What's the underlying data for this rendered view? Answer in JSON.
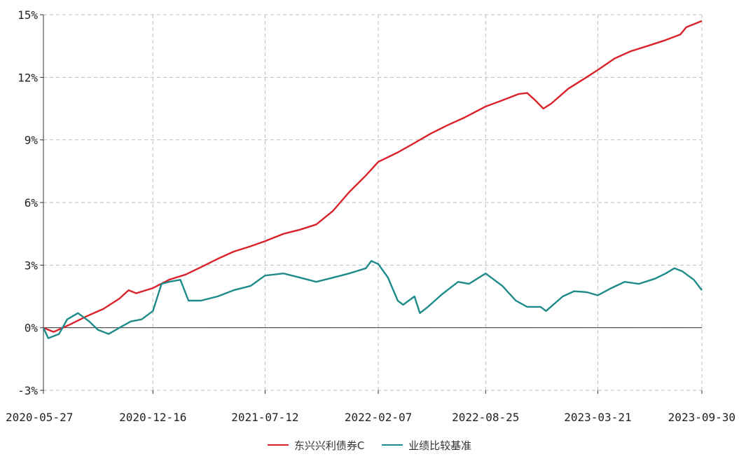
{
  "chart_data": {
    "type": "line",
    "title": "",
    "xlabel": "",
    "ylabel": "",
    "x_ticks": [
      "2020-05-27",
      "2020-12-16",
      "2021-07-12",
      "2022-02-07",
      "2022-08-25",
      "2023-03-21",
      "2023-09-30"
    ],
    "y_ticks": [
      "15%",
      "12%",
      "9%",
      "6%",
      "3%",
      "0%",
      "-3%"
    ],
    "y_tick_values": [
      15,
      12,
      9,
      6,
      3,
      0,
      -3
    ],
    "ylim": [
      -3,
      15
    ],
    "xlim": [
      "2020-05-27",
      "2023-09-30"
    ],
    "grid": true,
    "legend_position": "bottom-center",
    "series": [
      {
        "name": "东兴兴利债券C",
        "color": "#d9222a",
        "points": [
          [
            "2020-05-27",
            0.0
          ],
          [
            "2020-06-15",
            -0.2
          ],
          [
            "2020-07-15",
            0.15
          ],
          [
            "2020-08-15",
            0.55
          ],
          [
            "2020-09-15",
            0.9
          ],
          [
            "2020-10-15",
            1.4
          ],
          [
            "2020-11-01",
            1.8
          ],
          [
            "2020-11-15",
            1.65
          ],
          [
            "2020-12-16",
            1.9
          ],
          [
            "2021-01-15",
            2.3
          ],
          [
            "2021-02-15",
            2.55
          ],
          [
            "2021-03-15",
            2.9
          ],
          [
            "2021-04-15",
            3.3
          ],
          [
            "2021-05-15",
            3.65
          ],
          [
            "2021-06-15",
            3.9
          ],
          [
            "2021-07-12",
            4.15
          ],
          [
            "2021-08-15",
            4.5
          ],
          [
            "2021-09-15",
            4.7
          ],
          [
            "2021-10-15",
            4.95
          ],
          [
            "2021-11-15",
            5.6
          ],
          [
            "2021-12-15",
            6.5
          ],
          [
            "2022-01-15",
            7.3
          ],
          [
            "2022-02-07",
            7.95
          ],
          [
            "2022-03-15",
            8.4
          ],
          [
            "2022-04-15",
            8.85
          ],
          [
            "2022-05-15",
            9.3
          ],
          [
            "2022-06-15",
            9.7
          ],
          [
            "2022-07-15",
            10.05
          ],
          [
            "2022-08-25",
            10.6
          ],
          [
            "2022-09-25",
            10.9
          ],
          [
            "2022-10-25",
            11.2
          ],
          [
            "2022-11-10",
            11.25
          ],
          [
            "2022-11-25",
            10.9
          ],
          [
            "2022-12-10",
            10.5
          ],
          [
            "2022-12-25",
            10.75
          ],
          [
            "2023-01-25",
            11.45
          ],
          [
            "2023-02-25",
            11.95
          ],
          [
            "2023-03-21",
            12.35
          ],
          [
            "2023-04-21",
            12.9
          ],
          [
            "2023-05-21",
            13.25
          ],
          [
            "2023-06-21",
            13.5
          ],
          [
            "2023-07-21",
            13.75
          ],
          [
            "2023-08-21",
            14.05
          ],
          [
            "2023-09-01",
            14.4
          ],
          [
            "2023-09-30",
            14.7
          ]
        ]
      },
      {
        "name": "业绩比较基准",
        "color": "#1e8a8a",
        "points": [
          [
            "2020-05-27",
            0.0
          ],
          [
            "2020-06-05",
            -0.5
          ],
          [
            "2020-06-25",
            -0.3
          ],
          [
            "2020-07-10",
            0.4
          ],
          [
            "2020-07-30",
            0.7
          ],
          [
            "2020-08-20",
            0.3
          ],
          [
            "2020-09-05",
            -0.1
          ],
          [
            "2020-09-25",
            -0.3
          ],
          [
            "2020-10-15",
            0.0
          ],
          [
            "2020-11-05",
            0.3
          ],
          [
            "2020-11-25",
            0.4
          ],
          [
            "2020-12-16",
            0.8
          ],
          [
            "2021-01-01",
            2.1
          ],
          [
            "2021-01-15",
            2.2
          ],
          [
            "2021-02-05",
            2.3
          ],
          [
            "2021-02-20",
            1.3
          ],
          [
            "2021-03-15",
            1.3
          ],
          [
            "2021-04-15",
            1.5
          ],
          [
            "2021-05-15",
            1.8
          ],
          [
            "2021-06-15",
            2.0
          ],
          [
            "2021-07-12",
            2.5
          ],
          [
            "2021-08-15",
            2.6
          ],
          [
            "2021-09-15",
            2.4
          ],
          [
            "2021-10-15",
            2.2
          ],
          [
            "2021-11-15",
            2.4
          ],
          [
            "2021-12-15",
            2.6
          ],
          [
            "2022-01-15",
            2.85
          ],
          [
            "2022-01-25",
            3.2
          ],
          [
            "2022-02-07",
            3.05
          ],
          [
            "2022-02-25",
            2.4
          ],
          [
            "2022-03-15",
            1.3
          ],
          [
            "2022-03-25",
            1.1
          ],
          [
            "2022-04-15",
            1.5
          ],
          [
            "2022-04-25",
            0.7
          ],
          [
            "2022-05-10",
            1.0
          ],
          [
            "2022-06-05",
            1.6
          ],
          [
            "2022-07-05",
            2.2
          ],
          [
            "2022-07-25",
            2.1
          ],
          [
            "2022-08-25",
            2.6
          ],
          [
            "2022-09-25",
            2.0
          ],
          [
            "2022-10-20",
            1.3
          ],
          [
            "2022-11-10",
            1.0
          ],
          [
            "2022-12-05",
            1.0
          ],
          [
            "2022-12-15",
            0.8
          ],
          [
            "2023-01-15",
            1.5
          ],
          [
            "2023-02-05",
            1.75
          ],
          [
            "2023-03-01",
            1.7
          ],
          [
            "2023-03-21",
            1.55
          ],
          [
            "2023-04-15",
            1.9
          ],
          [
            "2023-05-10",
            2.2
          ],
          [
            "2023-06-05",
            2.1
          ],
          [
            "2023-07-05",
            2.35
          ],
          [
            "2023-07-25",
            2.6
          ],
          [
            "2023-08-10",
            2.85
          ],
          [
            "2023-08-25",
            2.7
          ],
          [
            "2023-09-15",
            2.3
          ],
          [
            "2023-09-30",
            1.8
          ]
        ]
      }
    ]
  }
}
